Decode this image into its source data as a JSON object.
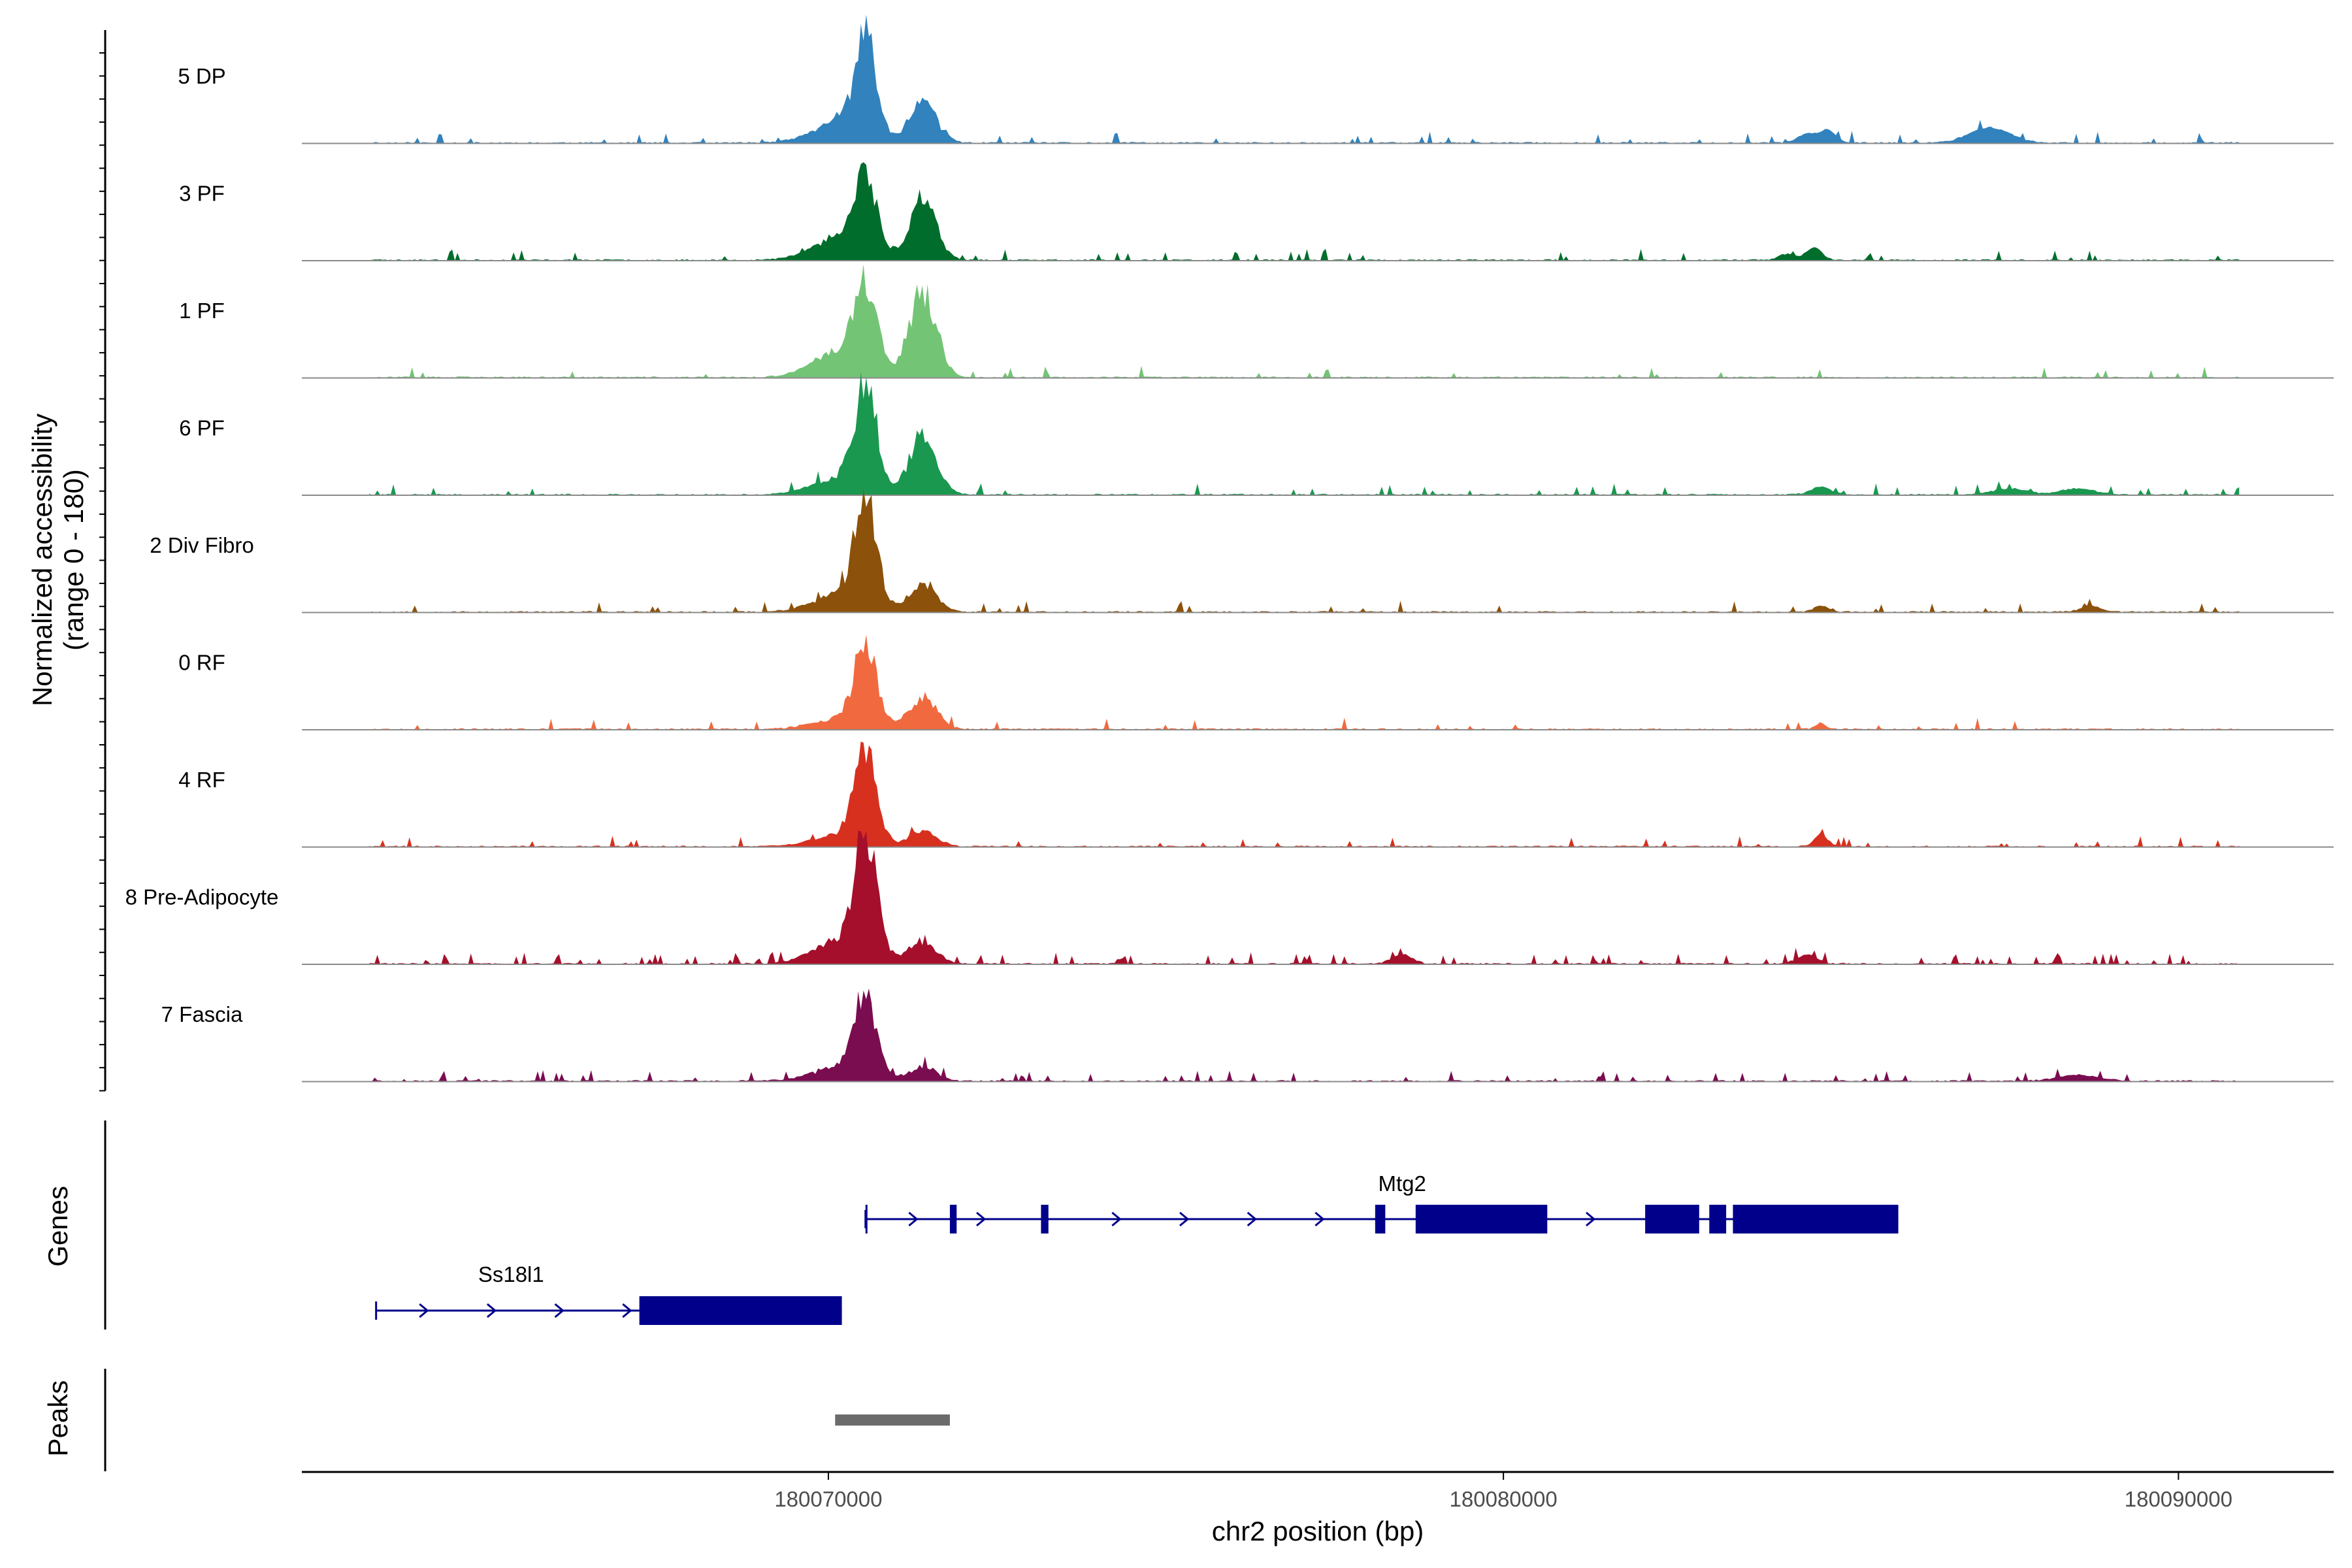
{
  "chart_data": {
    "type": "area",
    "title": "",
    "ylabel_line1": "Normalized accessibility",
    "ylabel_line2": "(range 0 - 180)",
    "genes_label": "Genes",
    "peaks_label": "Peaks",
    "xlabel": "chr2 position (bp)",
    "xlim": [
      180062200,
      180092300
    ],
    "ylim": [
      0,
      180
    ],
    "x_ticks": [
      {
        "value": 180070000,
        "label": "180070000"
      },
      {
        "value": 180080000,
        "label": "180080000"
      },
      {
        "value": 180090000,
        "label": "180090000"
      }
    ],
    "series": [
      {
        "name": "5 DP",
        "color": "#3182bd",
        "p1": 160,
        "p2": 70,
        "p3": 35,
        "noise": 0.06,
        "seed": 11,
        "extra": [
          [
            180084500,
            15,
            130
          ],
          [
            180084800,
            20,
            120
          ],
          [
            180087200,
            25,
            300
          ]
        ]
      },
      {
        "name": "3 PF",
        "color": "#006d2c",
        "p1": 135,
        "p2": 95,
        "p3": 40,
        "noise": 0.05,
        "seed": 23,
        "extra": [
          [
            180084600,
            20,
            120
          ],
          [
            180084200,
            10,
            120
          ]
        ]
      },
      {
        "name": "1 PF",
        "color": "#74c476",
        "p1": 130,
        "p2": 150,
        "p3": 45,
        "noise": 0.04,
        "seed": 37,
        "extra": []
      },
      {
        "name": "6 PF",
        "color": "#1a9850",
        "p1": 165,
        "p2": 100,
        "p3": 30,
        "noise": 0.07,
        "seed": 41,
        "extra": [
          [
            180084700,
            12,
            150
          ],
          [
            180087500,
            10,
            250
          ],
          [
            180088500,
            10,
            250
          ]
        ]
      },
      {
        "name": "2 Div Fibro",
        "color": "#8c510a",
        "p1": 175,
        "p2": 50,
        "p3": 30,
        "noise": 0.06,
        "seed": 53,
        "extra": [
          [
            180084700,
            10,
            100
          ],
          [
            180088700,
            10,
            150
          ]
        ]
      },
      {
        "name": "0 RF",
        "color": "#f16a3f",
        "p1": 140,
        "p2": 55,
        "p3": 20,
        "noise": 0.03,
        "seed": 67,
        "extra": [
          [
            180084700,
            10,
            80
          ]
        ]
      },
      {
        "name": "4 RF",
        "color": "#d7301f",
        "p1": 160,
        "p2": 25,
        "p3": 20,
        "noise": 0.04,
        "seed": 71,
        "extra": [
          [
            180084700,
            20,
            100
          ]
        ]
      },
      {
        "name": "8 Pre-Adipocyte",
        "color": "#a50f2b",
        "p1": 210,
        "p2": 40,
        "p3": 40,
        "noise": 0.12,
        "seed": 83,
        "extra": [
          [
            180078500,
            15,
            150
          ],
          [
            180084500,
            15,
            150
          ]
        ]
      },
      {
        "name": "7 Fascia",
        "color": "#7a0c50",
        "p1": 135,
        "p2": 25,
        "p3": 25,
        "noise": 0.08,
        "seed": 97,
        "extra": [
          [
            180088500,
            10,
            300
          ]
        ]
      }
    ],
    "genes": [
      {
        "name": "Mtg2",
        "start": 180070550,
        "end": 180085850,
        "strand": "+",
        "exons": [
          [
            180070550,
            180070560
          ],
          [
            180071800,
            180071900
          ],
          [
            180073150,
            180073260
          ],
          [
            180078100,
            180078250
          ],
          [
            180078700,
            180080650
          ],
          [
            180082100,
            180082900
          ],
          [
            180083050,
            180083300
          ],
          [
            180083400,
            180085850
          ]
        ]
      },
      {
        "name": "Ss18l1",
        "start": 180063300,
        "end": 180070200,
        "strand": "+",
        "exons": [
          [
            180067200,
            180070200
          ]
        ]
      }
    ],
    "peaks": [
      {
        "start": 180070100,
        "end": 180071800
      }
    ]
  }
}
